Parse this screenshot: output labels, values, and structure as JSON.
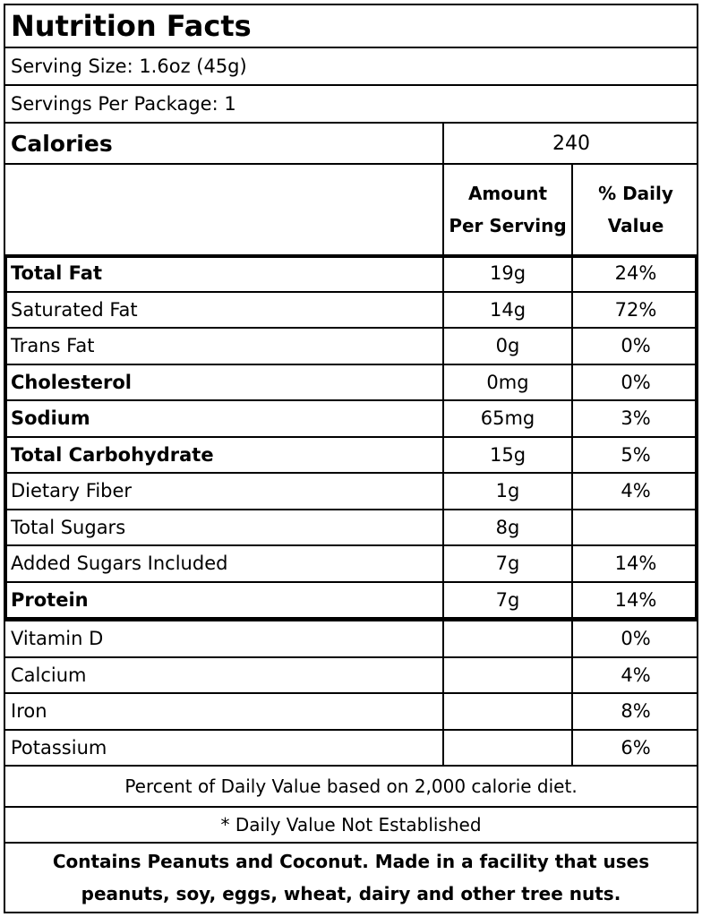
{
  "title": "Nutrition Facts",
  "serving_size": "Serving Size: 1.6oz (45g)",
  "servings_per_package": "Servings Per Package: 1",
  "calories": {
    "label": "Calories",
    "value": "240"
  },
  "header": {
    "amount": "Amount\nPer Serving",
    "daily_value": "% Daily\nValue"
  },
  "nutrients": [
    {
      "name": "Total Fat",
      "amount": "19g",
      "dv": "24%"
    },
    {
      "name": "Saturated Fat",
      "amount": "14g",
      "dv": "72%"
    },
    {
      "name": "Trans Fat",
      "amount": "0g",
      "dv": "0%"
    },
    {
      "name": "Cholesterol",
      "amount": "0mg",
      "dv": "0%"
    },
    {
      "name": "Sodium",
      "amount": "65mg",
      "dv": "3%"
    },
    {
      "name": "Total Carbohydrate",
      "amount": "15g",
      "dv": "5%"
    },
    {
      "name": "Dietary Fiber",
      "amount": "1g",
      "dv": "4%"
    },
    {
      "name": "Total Sugars",
      "amount": "8g",
      "dv": ""
    },
    {
      "name": "Added Sugars Included",
      "amount": "7g",
      "dv": "14%"
    },
    {
      "name": "Protein",
      "amount": "7g",
      "dv": "14%"
    }
  ],
  "vitamins": [
    {
      "name": "Vitamin D",
      "amount": "",
      "dv": "0%"
    },
    {
      "name": "Calcium",
      "amount": "",
      "dv": "4%"
    },
    {
      "name": "Iron",
      "amount": "",
      "dv": "8%"
    },
    {
      "name": "Potassium",
      "amount": "",
      "dv": "6%"
    }
  ],
  "footnote_dv": "Percent of Daily Value based on 2,000 calorie diet.",
  "footnote_na": "* Daily Value Not Established",
  "allergen": "Contains Peanuts and Coconut.  Made in a facility that uses\npeanuts, soy, eggs, wheat, dairy and other tree nuts."
}
